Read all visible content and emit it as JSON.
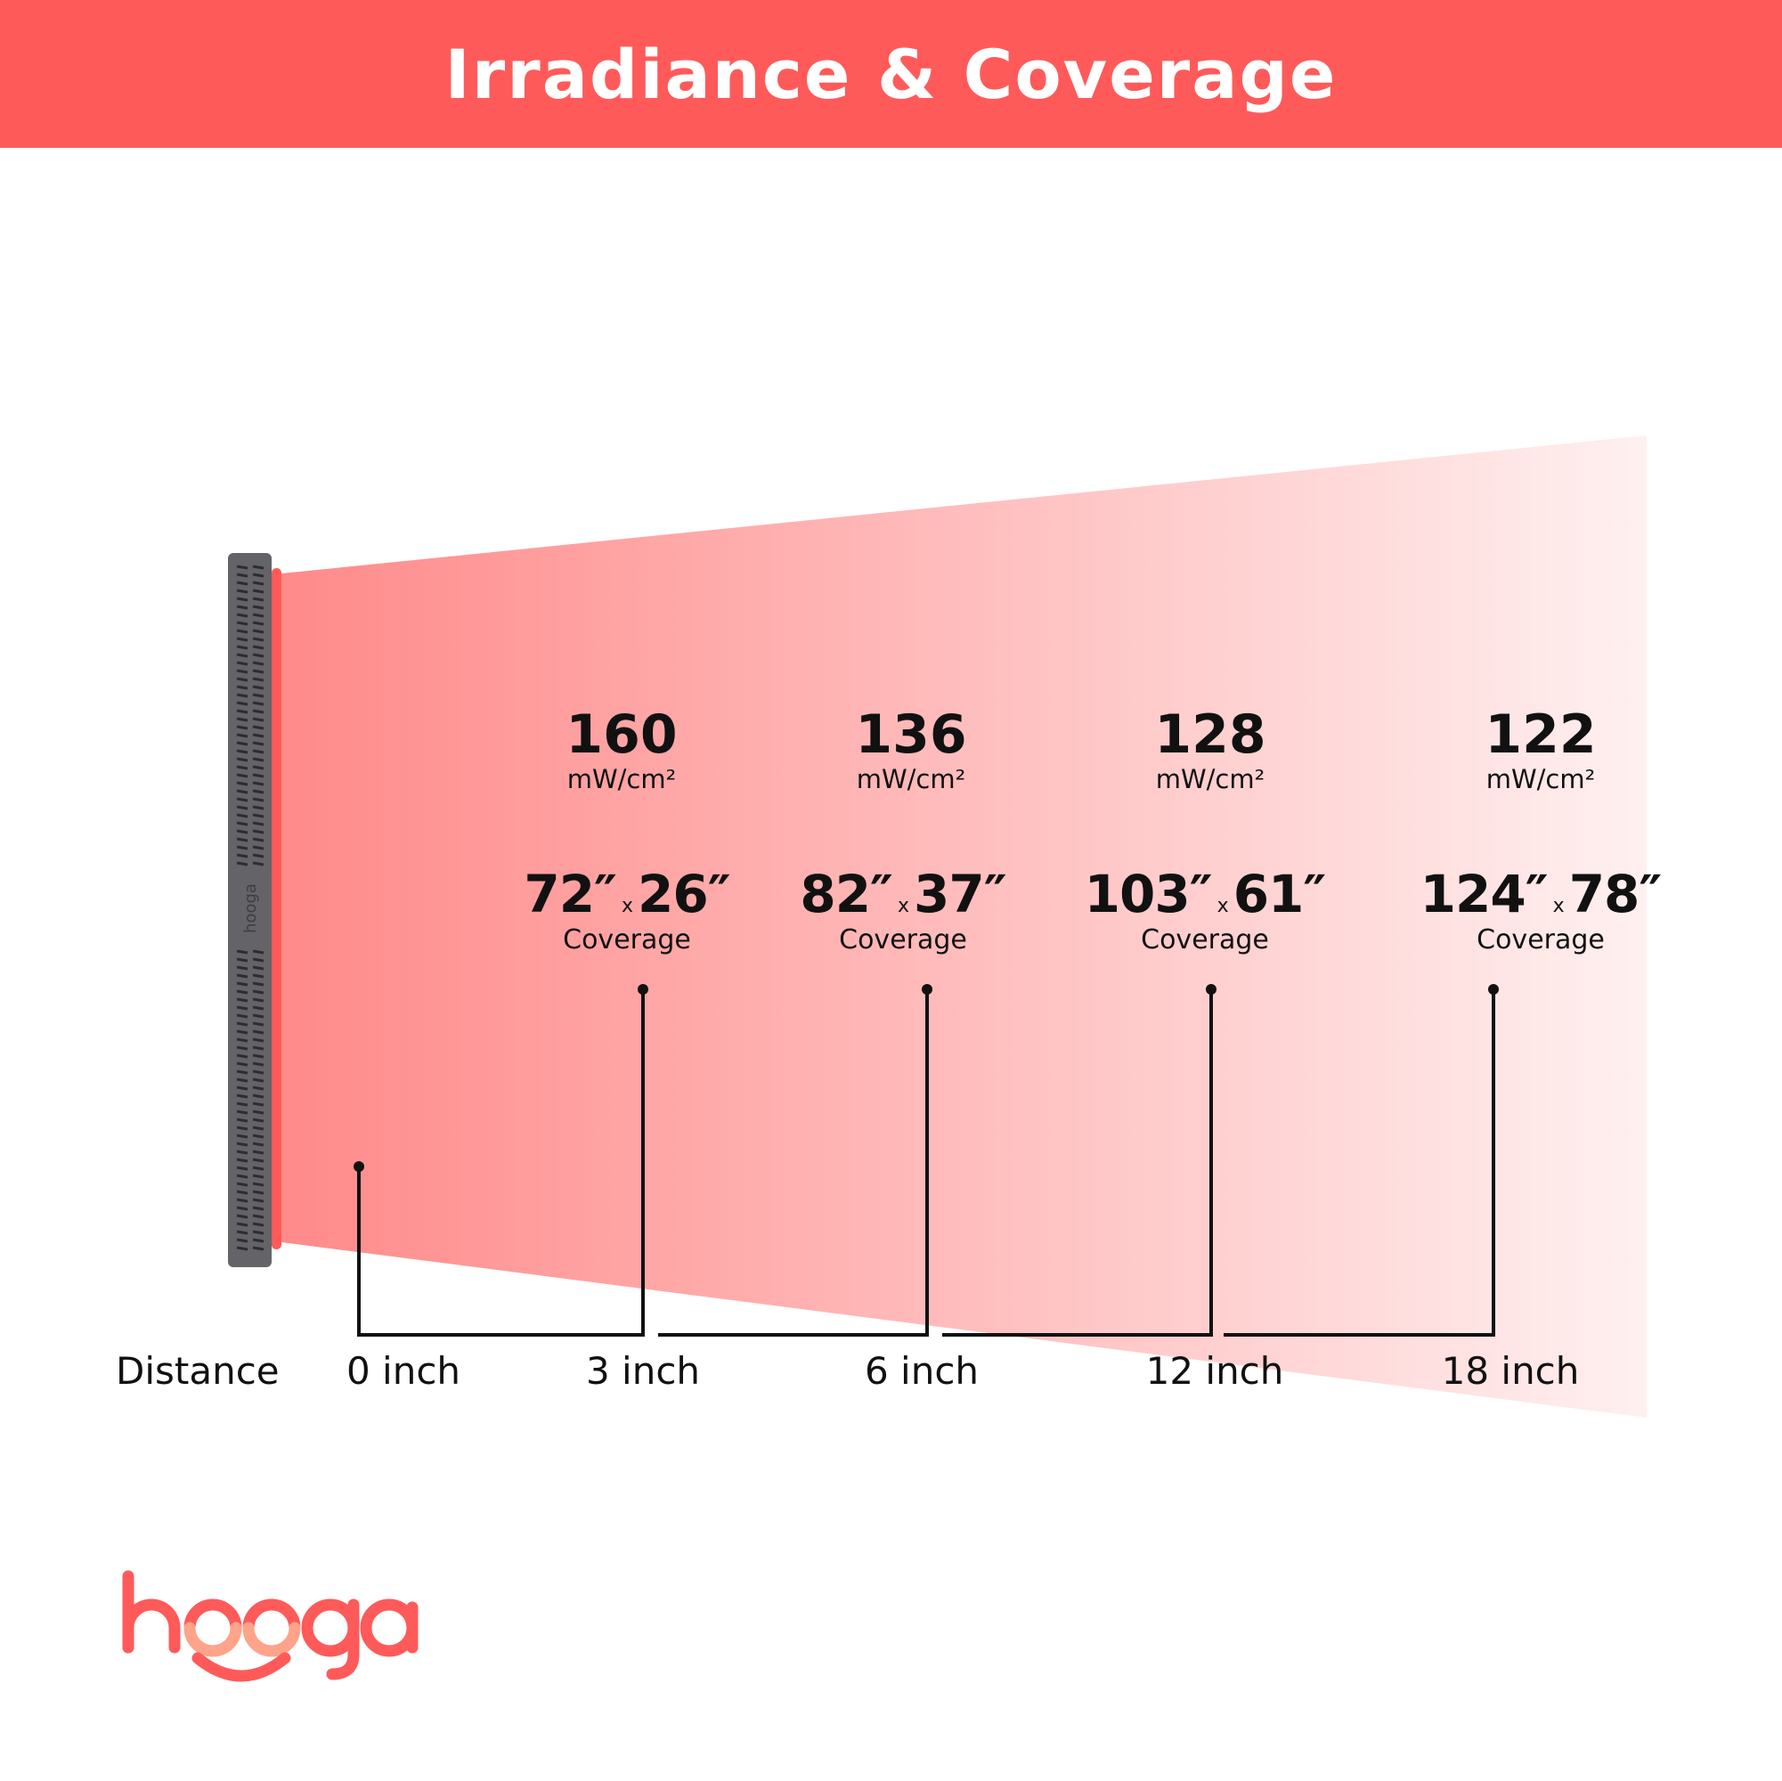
{
  "title": "Irradiance & Coverage",
  "colors": {
    "brand": "#ff5a5a",
    "device": "#646368",
    "beam_start": "#ff8a8a",
    "beam_end": "#fff0f0",
    "logo_accent": "#ffa38a"
  },
  "device_logo": "hooga",
  "measurements": [
    {
      "irradiance": "160",
      "unit": "mW/cm²",
      "width": "72″",
      "height": "26″",
      "times": "x",
      "coverage_label": "Coverage"
    },
    {
      "irradiance": "136",
      "unit": "mW/cm²",
      "width": "82″",
      "height": "37″",
      "times": "x",
      "coverage_label": "Coverage"
    },
    {
      "irradiance": "128",
      "unit": "mW/cm²",
      "width": "103″",
      "height": "61″",
      "times": "x",
      "coverage_label": "Coverage"
    },
    {
      "irradiance": "122",
      "unit": "mW/cm²",
      "width": "124″",
      "height": "78″",
      "times": "x",
      "coverage_label": "Coverage"
    }
  ],
  "distance": {
    "label": "Distance",
    "ticks": [
      "0 inch",
      "3 inch",
      "6 inch",
      "12 inch",
      "18 inch"
    ]
  },
  "brand_logo": "hooga"
}
